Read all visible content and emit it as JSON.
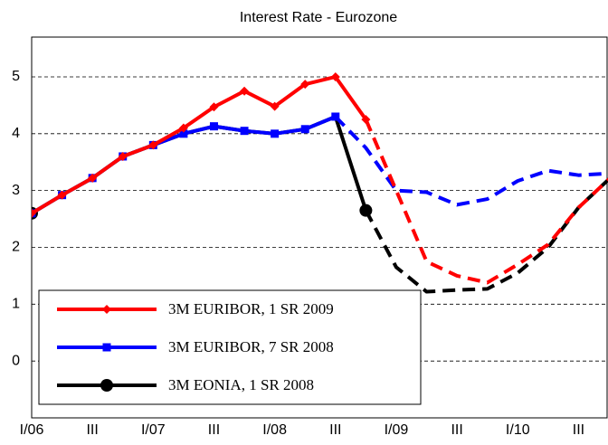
{
  "chart_data": {
    "type": "line",
    "title": "Interest Rate - Eurozone",
    "categories": [
      "I/06",
      null,
      "III",
      null,
      "I/07",
      null,
      "III",
      null,
      "I/08",
      null,
      "III",
      null,
      "I/09",
      null,
      "III",
      null,
      "I/10",
      null,
      "III",
      null
    ],
    "series": [
      {
        "name": "3M EURIBOR, 1 SR 2009",
        "color": "#ff0000",
        "marker": "diamond",
        "dashed_from": 11,
        "values": [
          2.6,
          2.92,
          3.22,
          3.6,
          3.8,
          4.1,
          4.47,
          4.75,
          4.48,
          4.87,
          5.0,
          4.25,
          3.0,
          1.75,
          1.5,
          1.38,
          1.7,
          2.05,
          2.7,
          3.2
        ]
      },
      {
        "name": "3M EURIBOR, 7 SR 2008",
        "color": "#0000ff",
        "marker": "square",
        "dashed_from": 10,
        "values": [
          2.6,
          2.92,
          3.22,
          3.6,
          3.8,
          4.0,
          4.13,
          4.05,
          4.0,
          4.08,
          4.3,
          3.75,
          3.0,
          2.97,
          2.75,
          2.85,
          3.17,
          3.35,
          3.27,
          3.3
        ]
      },
      {
        "name": "3M EONIA, 1 SR 2008",
        "color": "#000000",
        "marker": "circle",
        "dashed_from": 11,
        "values": [
          2.6,
          2.92,
          3.22,
          3.6,
          3.8,
          4.0,
          4.13,
          4.05,
          4.0,
          4.08,
          4.3,
          2.65,
          1.65,
          1.22,
          1.25,
          1.27,
          1.55,
          2.0,
          2.7,
          3.2
        ]
      }
    ],
    "ylim": [
      -1,
      5.7
    ],
    "yticks": [
      0,
      1,
      2,
      3,
      4,
      5
    ],
    "grid": true,
    "legend": "lower-left"
  }
}
